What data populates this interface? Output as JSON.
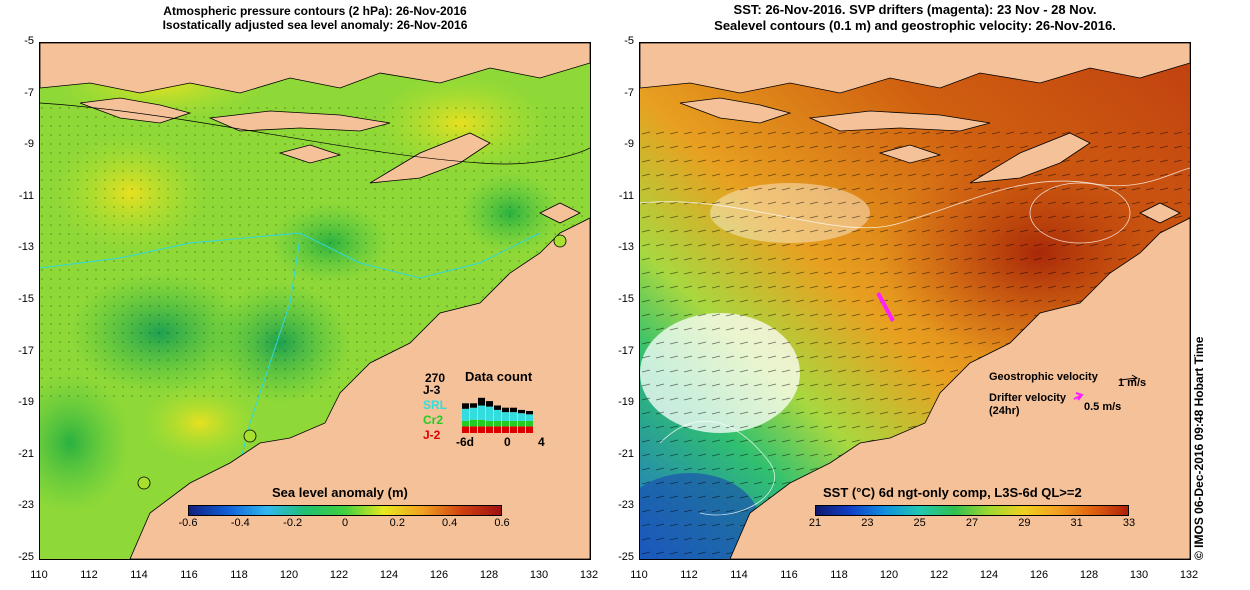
{
  "left_panel": {
    "title_line1": "Atmospheric pressure contours (2 hPa): 26-Nov-2016",
    "title_line2": "Isostatically adjusted sea level anomaly: 26-Nov-2016",
    "colorbar_title": "Sea level anomaly (m)",
    "colorbar_ticks": [
      "-0.6",
      "-0.4",
      "-0.2",
      "0",
      "0.2",
      "0.4",
      "0.6"
    ],
    "data_count": {
      "title": "Data count",
      "max_label": "270",
      "legend": [
        {
          "label": "J-3",
          "color": "#000000"
        },
        {
          "label": "SRL",
          "color": "#33dddd"
        },
        {
          "label": "Cr2",
          "color": "#22cc22"
        },
        {
          "label": "J-2",
          "color": "#dd0000"
        }
      ],
      "x_labels": [
        "-6d",
        "0",
        "4"
      ]
    }
  },
  "right_panel": {
    "title_line1": "SST: 26-Nov-2016. SVP drifters (magenta): 23 Nov - 28 Nov.",
    "title_line2": "Sealevel contours (0.1 m) and geostrophic velocity: 26-Nov-2016.",
    "colorbar_title": "SST (°C) 6d ngt-only comp, L3S-6d QL>=2",
    "colorbar_ticks": [
      "21",
      "23",
      "25",
      "27",
      "29",
      "31",
      "33"
    ],
    "geostrophic_label": "Geostrophic velocity",
    "geostrophic_scale": "1 m/s",
    "drifter_label": "Drifter velocity",
    "drifter_sub": "(24hr)",
    "drifter_scale": "0.5 m/s"
  },
  "axes": {
    "x_ticks": [
      "110",
      "112",
      "114",
      "116",
      "118",
      "120",
      "122",
      "124",
      "126",
      "128",
      "130",
      "132"
    ],
    "y_ticks": [
      "-5",
      "-7",
      "-9",
      "-11",
      "-13",
      "-15",
      "-17",
      "-19",
      "-21",
      "-23",
      "-25"
    ]
  },
  "credit": "© IMOS 06-Dec-2016 09:48 Hobart Time",
  "colors": {
    "land": "#f5c199",
    "coast": "#000000"
  }
}
